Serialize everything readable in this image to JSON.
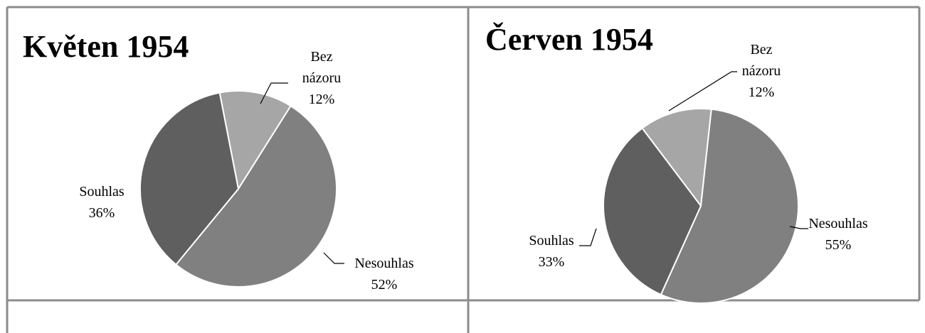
{
  "chart_data": [
    {
      "type": "pie",
      "title": "Květen 1954",
      "categories": [
        "Bez názoru",
        "Nesouhlas",
        "Souhlas"
      ],
      "values": [
        12,
        52,
        36
      ],
      "value_labels": [
        "12%",
        "52%",
        "36%"
      ],
      "colors": [
        "#a6a6a6",
        "#808080",
        "#5f5f5f"
      ]
    },
    {
      "type": "pie",
      "title": "Červen 1954",
      "categories": [
        "Bez názoru",
        "Nesouhlas",
        "Souhlas"
      ],
      "values": [
        12,
        55,
        33
      ],
      "value_labels": [
        "12%",
        "55%",
        "33%"
      ],
      "colors": [
        "#a6a6a6",
        "#808080",
        "#5f5f5f"
      ]
    }
  ]
}
